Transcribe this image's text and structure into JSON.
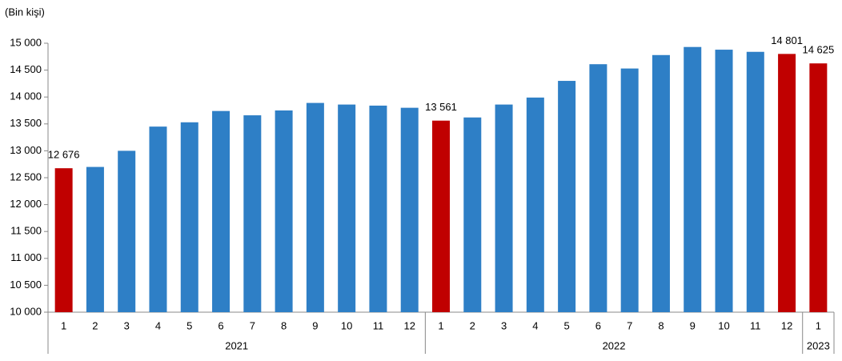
{
  "chart_data": {
    "type": "bar",
    "y_label": "(Bin kişi)",
    "ylim": [
      10000,
      15000
    ],
    "yticks": [
      {
        "value": 10000,
        "label": "10 000"
      },
      {
        "value": 10500,
        "label": "10 500"
      },
      {
        "value": 11000,
        "label": "11 000"
      },
      {
        "value": 11500,
        "label": "11 500"
      },
      {
        "value": 12000,
        "label": "12 000"
      },
      {
        "value": 12500,
        "label": "12 500"
      },
      {
        "value": 13000,
        "label": "13 000"
      },
      {
        "value": 13500,
        "label": "13 500"
      },
      {
        "value": 14000,
        "label": "14 000"
      },
      {
        "value": 14500,
        "label": "14 500"
      },
      {
        "value": 15000,
        "label": "15 000"
      }
    ],
    "grid": false,
    "groups": [
      {
        "label": "2021",
        "categories": [
          "1",
          "2",
          "3",
          "4",
          "5",
          "6",
          "7",
          "8",
          "9",
          "10",
          "11",
          "12"
        ],
        "values": [
          12676,
          12700,
          13000,
          13450,
          13530,
          13740,
          13660,
          13750,
          13890,
          13860,
          13840,
          13800
        ],
        "value_labels": [
          "12 676",
          null,
          null,
          null,
          null,
          null,
          null,
          null,
          null,
          null,
          null,
          null
        ],
        "colors": [
          "#c00000",
          "#2e7fc6",
          "#2e7fc6",
          "#2e7fc6",
          "#2e7fc6",
          "#2e7fc6",
          "#2e7fc6",
          "#2e7fc6",
          "#2e7fc6",
          "#2e7fc6",
          "#2e7fc6",
          "#2e7fc6"
        ]
      },
      {
        "label": "2022",
        "categories": [
          "1",
          "2",
          "3",
          "4",
          "5",
          "6",
          "7",
          "8",
          "9",
          "10",
          "11",
          "12"
        ],
        "values": [
          13561,
          13620,
          13860,
          13990,
          14300,
          14610,
          14530,
          14780,
          14930,
          14880,
          14840,
          14801
        ],
        "value_labels": [
          "13 561",
          null,
          null,
          null,
          null,
          null,
          null,
          null,
          null,
          null,
          null,
          "14 801"
        ],
        "colors": [
          "#c00000",
          "#2e7fc6",
          "#2e7fc6",
          "#2e7fc6",
          "#2e7fc6",
          "#2e7fc6",
          "#2e7fc6",
          "#2e7fc6",
          "#2e7fc6",
          "#2e7fc6",
          "#2e7fc6",
          "#c00000"
        ]
      },
      {
        "label": "2023",
        "categories": [
          "1"
        ],
        "values": [
          14625
        ],
        "value_labels": [
          "14 625"
        ],
        "colors": [
          "#c00000"
        ]
      }
    ]
  }
}
